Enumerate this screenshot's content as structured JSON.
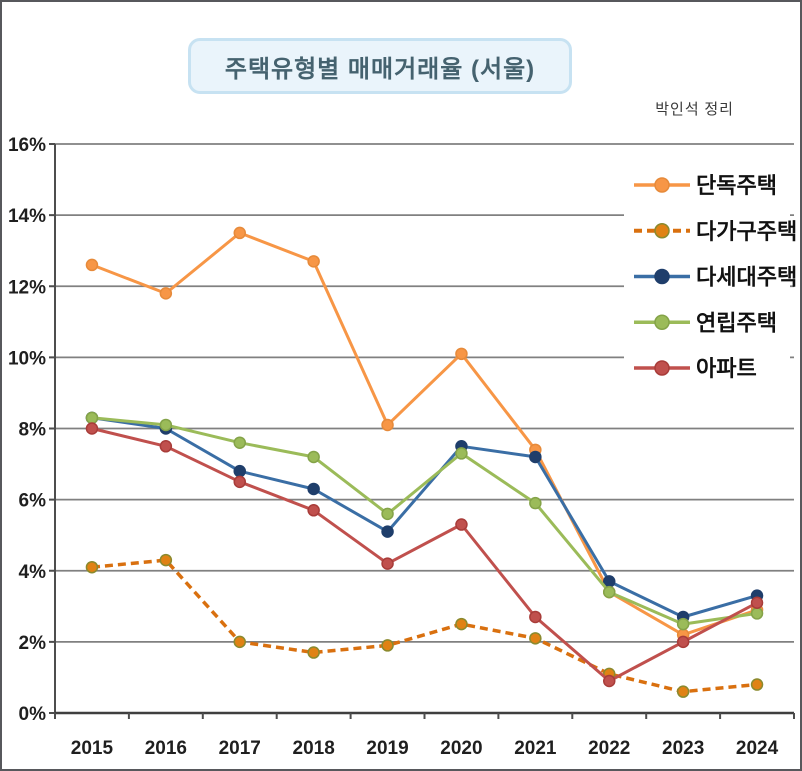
{
  "window": {
    "background": "#ffffff",
    "border_color": "#57585c"
  },
  "header": {
    "title": "주택유형별 매매거래율 (서울)",
    "title_color": "#45626f",
    "title_box_fill": "#eaf4fb",
    "title_box_border": "#c7e2f2",
    "credit": "박인석 정리"
  },
  "chart_data": {
    "type": "line",
    "title": "주택유형별 매매거래율 (서울)",
    "categories": [
      "2015",
      "2016",
      "2017",
      "2018",
      "2019",
      "2020",
      "2021",
      "2022",
      "2023",
      "2024"
    ],
    "xlabel": "",
    "ylabel": "",
    "ylim": [
      0,
      16
    ],
    "ytick_step": 2,
    "ytick_labels": [
      "0%",
      "2%",
      "4%",
      "6%",
      "8%",
      "10%",
      "12%",
      "14%",
      "16%"
    ],
    "grid": true,
    "legend_position": "inside-top-right",
    "series": [
      {
        "id": "detached-house",
        "name": "단독주택",
        "color": "#f79646",
        "marker_color": "#f79646",
        "marker_stroke": "#e68a3a",
        "dash": false,
        "values": [
          12.6,
          11.8,
          13.5,
          12.7,
          8.1,
          10.1,
          7.4,
          3.4,
          2.2,
          2.9
        ]
      },
      {
        "id": "multi-household-house",
        "name": "다가구주택",
        "color": "#d9700f",
        "marker_color": "#e08214",
        "marker_stroke": "#8a8a2e",
        "dash": true,
        "values": [
          4.1,
          4.3,
          2.0,
          1.7,
          1.9,
          2.5,
          2.1,
          1.1,
          0.6,
          0.8
        ]
      },
      {
        "id": "multi-unit-house",
        "name": "다세대주택",
        "color": "#3a6ea5",
        "marker_color": "#1f3e6b",
        "marker_stroke": "#1f3e6b",
        "dash": false,
        "values": [
          8.3,
          8.0,
          6.8,
          6.3,
          5.1,
          7.5,
          7.2,
          3.7,
          2.7,
          3.3
        ]
      },
      {
        "id": "row-house",
        "name": "연립주택",
        "color": "#9bbb59",
        "marker_color": "#9bbb59",
        "marker_stroke": "#84a348",
        "dash": false,
        "values": [
          8.3,
          8.1,
          7.6,
          7.2,
          5.6,
          7.3,
          5.9,
          3.4,
          2.5,
          2.8
        ]
      },
      {
        "id": "apartment",
        "name": "아파트",
        "color": "#c0504d",
        "marker_color": "#c0504d",
        "marker_stroke": "#a83c39",
        "dash": false,
        "values": [
          8.0,
          7.5,
          6.5,
          5.7,
          4.2,
          5.3,
          2.7,
          0.9,
          2.0,
          3.1
        ]
      }
    ],
    "colors": {
      "grid": "#808080",
      "axis": "#4d4d4d",
      "tick_label": "#1f1f1f",
      "legend_text": "#111111"
    }
  }
}
